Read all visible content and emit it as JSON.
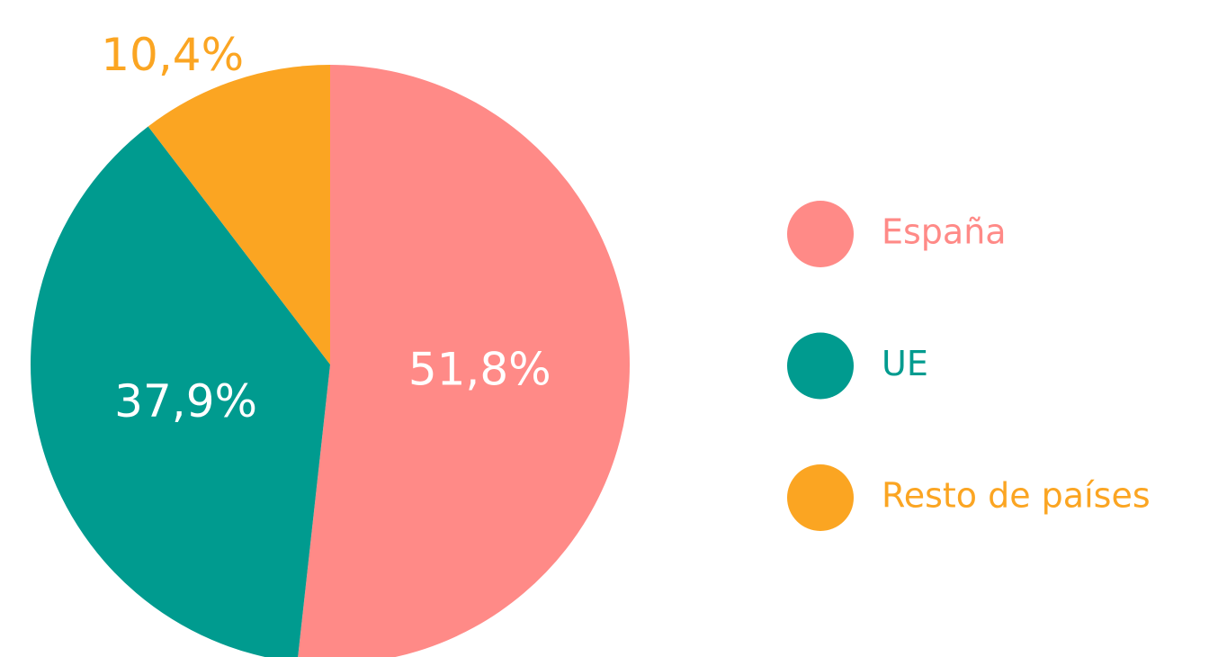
{
  "chart_data": {
    "type": "pie",
    "categories": [
      "España",
      "UE",
      "Resto de países"
    ],
    "values": [
      51.8,
      37.9,
      10.4
    ],
    "value_labels": [
      "51,8%",
      "37,9%",
      "10,4%"
    ],
    "colors": [
      "#ff8a87",
      "#009b8f",
      "#fba522"
    ]
  }
}
